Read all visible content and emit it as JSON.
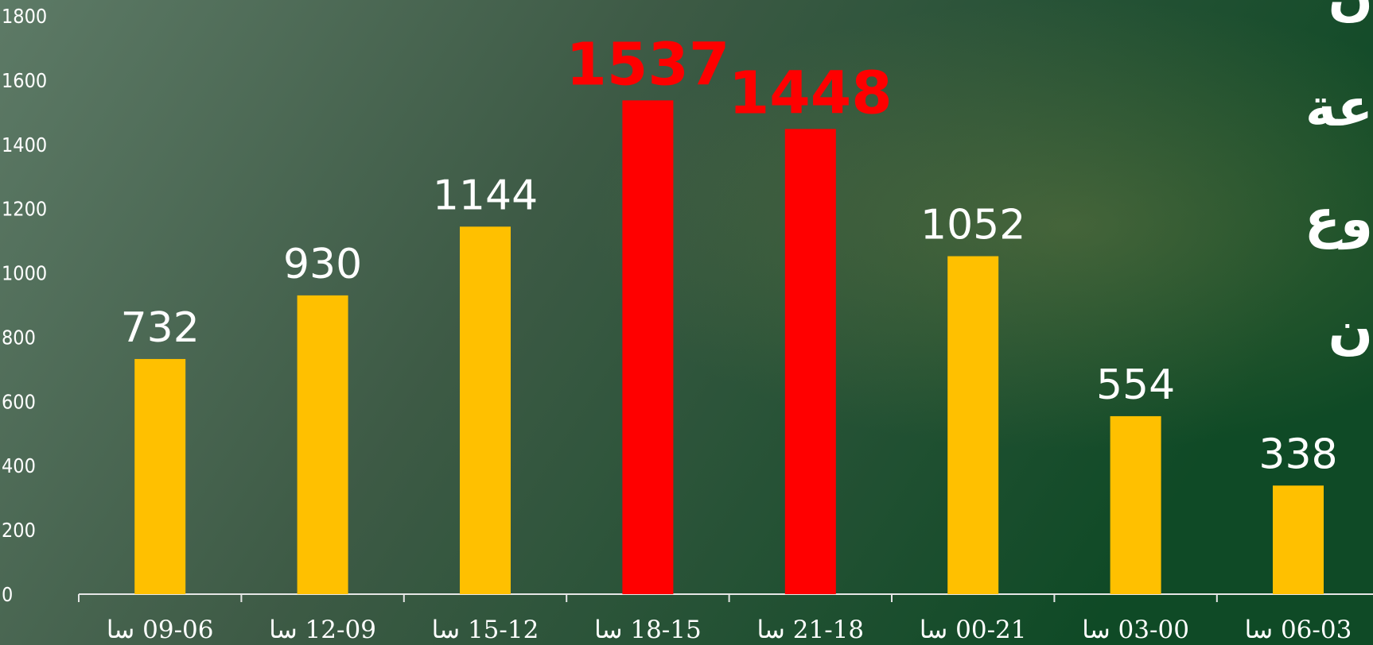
{
  "chart_data": {
    "type": "bar",
    "categories": [
      "09-06 سا",
      "12-09 سا",
      "15-12 سا",
      "18-15 سا",
      "21-18 سا",
      "00-21 سا",
      "03-00 سا",
      "06-03 سا"
    ],
    "values": [
      732,
      930,
      1144,
      1537,
      1448,
      1052,
      554,
      338
    ],
    "colors": [
      "#ffc000",
      "#ffc000",
      "#ffc000",
      "#ff0000",
      "#ff0000",
      "#ffc000",
      "#ffc000",
      "#ffc000"
    ],
    "ylim": [
      0,
      1800
    ],
    "yticks": [
      0,
      200,
      400,
      600,
      800,
      1000,
      1200,
      1400,
      1600,
      1800
    ],
    "grid": false,
    "side_text": [
      "ن",
      "عة",
      "وع",
      "ن"
    ]
  }
}
